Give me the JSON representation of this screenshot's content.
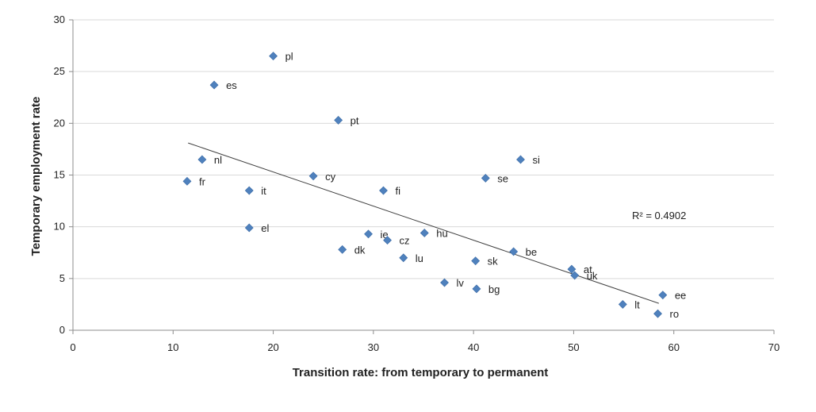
{
  "chart_data": {
    "type": "scatter",
    "xlabel": "Transition rate:  from temporary to permanent",
    "ylabel": "Temporary employment rate",
    "xlim": [
      0,
      70
    ],
    "ylim": [
      0,
      30
    ],
    "x_ticks": [
      "0",
      "10",
      "20",
      "30",
      "40",
      "50",
      "60",
      "70"
    ],
    "y_ticks": [
      "0",
      "5",
      "10",
      "15",
      "20",
      "25",
      "30"
    ],
    "grid": "horizontal",
    "marker_color": "#4F81BD",
    "trendline_color": "#404040",
    "trendline": {
      "type": "linear",
      "x_range": [
        11.5,
        58.5
      ],
      "y_range": [
        18.1,
        2.6
      ]
    },
    "r_squared_label": "R² = 0.4902",
    "points": [
      {
        "label": "pl",
        "x": 20.0,
        "y": 26.5
      },
      {
        "label": "es",
        "x": 14.1,
        "y": 23.7
      },
      {
        "label": "pt",
        "x": 26.5,
        "y": 20.3
      },
      {
        "label": "si",
        "x": 44.7,
        "y": 16.5
      },
      {
        "label": "nl",
        "x": 12.9,
        "y": 16.5
      },
      {
        "label": "fr",
        "x": 11.4,
        "y": 14.4
      },
      {
        "label": "cy",
        "x": 24.0,
        "y": 14.9
      },
      {
        "label": "se",
        "x": 41.2,
        "y": 14.7
      },
      {
        "label": "it",
        "x": 17.6,
        "y": 13.5
      },
      {
        "label": "fi",
        "x": 31.0,
        "y": 13.5
      },
      {
        "label": "el",
        "x": 17.6,
        "y": 9.9
      },
      {
        "label": "hu",
        "x": 35.1,
        "y": 9.4
      },
      {
        "label": "ie",
        "x": 29.5,
        "y": 9.3
      },
      {
        "label": "cz",
        "x": 31.4,
        "y": 8.7
      },
      {
        "label": "dk",
        "x": 26.9,
        "y": 7.8
      },
      {
        "label": "be",
        "x": 44.0,
        "y": 7.6
      },
      {
        "label": "lu",
        "x": 33.0,
        "y": 7.0
      },
      {
        "label": "sk",
        "x": 40.2,
        "y": 6.7
      },
      {
        "label": "at",
        "x": 49.8,
        "y": 5.9
      },
      {
        "label": "uk",
        "x": 50.1,
        "y": 5.3
      },
      {
        "label": "lv",
        "x": 37.1,
        "y": 4.6
      },
      {
        "label": "bg",
        "x": 40.3,
        "y": 4.0
      },
      {
        "label": "ee",
        "x": 58.9,
        "y": 3.4
      },
      {
        "label": "lt",
        "x": 54.9,
        "y": 2.5
      },
      {
        "label": "ro",
        "x": 58.4,
        "y": 1.6
      }
    ]
  }
}
